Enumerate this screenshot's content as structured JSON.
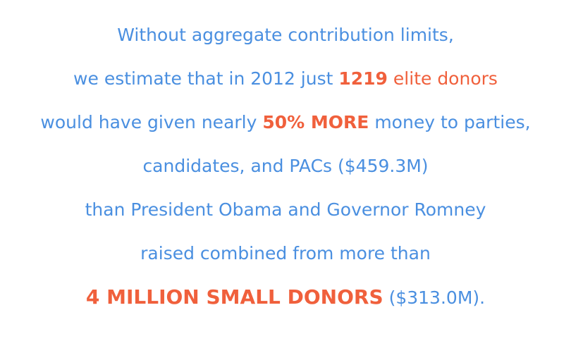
{
  "colors": {
    "text": "#4a8fe0",
    "accent": "#f0603c",
    "background": "#ffffff"
  },
  "lines": [
    {
      "parts": [
        {
          "text": "Without aggregate contribution limits,",
          "style": "normal"
        }
      ]
    },
    {
      "parts": [
        {
          "text": "we estimate that in 2012 just ",
          "style": "normal"
        },
        {
          "text": "1219",
          "style": "accent-bold"
        },
        {
          "text": " elite donors",
          "style": "accent"
        }
      ]
    },
    {
      "parts": [
        {
          "text": "would have given nearly ",
          "style": "normal"
        },
        {
          "text": "50% MORE",
          "style": "accent-bold"
        },
        {
          "text": " money to parties,",
          "style": "normal"
        }
      ]
    },
    {
      "parts": [
        {
          "text": "candidates, and PACs ($459.3M)",
          "style": "normal"
        }
      ]
    },
    {
      "parts": [
        {
          "text": "than President Obama and Governor Romney",
          "style": "normal"
        }
      ]
    },
    {
      "parts": [
        {
          "text": "raised combined from more than",
          "style": "normal"
        }
      ]
    },
    {
      "parts": [
        {
          "text": "4 MILLION SMALL DONORS",
          "style": "accent-bold-big"
        },
        {
          "text": " ($313.0M).",
          "style": "normal"
        }
      ]
    }
  ]
}
